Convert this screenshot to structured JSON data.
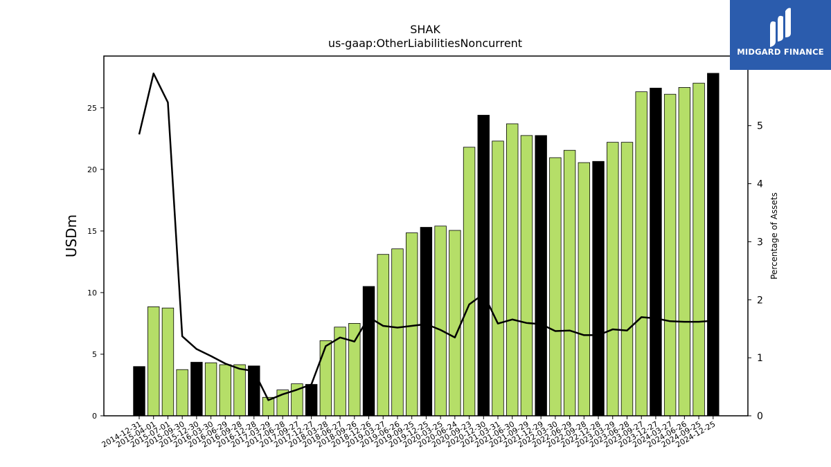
{
  "brand": {
    "name": "MIDGARD FINANCE",
    "background": "#2b5cad"
  },
  "chart_data": {
    "type": "bar",
    "title": "SHAK",
    "subtitle": "us-gaap:OtherLiabilitiesNoncurrent",
    "ylabel": "USDm",
    "y2label": "Percentage of Assets",
    "ylim": [
      0,
      29.2
    ],
    "y2lim": [
      0,
      6.2
    ],
    "yticks": [
      0,
      5,
      10,
      15,
      20,
      25
    ],
    "y2ticks": [
      0,
      1,
      2,
      3,
      4,
      5
    ],
    "bar_color_default": "#b5de68",
    "bar_color_highlight": "#000000",
    "line_color": "#000000",
    "categories": [
      "2014-12-31",
      "2015-04-01",
      "2015-07-01",
      "2015-09-30",
      "2015-12-30",
      "2016-03-30",
      "2016-06-29",
      "2016-09-28",
      "2016-12-28",
      "2017-03-29",
      "2017-06-28",
      "2017-09-27",
      "2017-12-27",
      "2018-03-28",
      "2018-06-27",
      "2018-09-26",
      "2018-12-26",
      "2019-03-27",
      "2019-06-26",
      "2019-09-25",
      "2019-12-25",
      "2020-03-25",
      "2020-06-24",
      "2020-09-23",
      "2020-12-30",
      "2021-03-31",
      "2021-06-30",
      "2021-09-29",
      "2021-12-29",
      "2022-03-30",
      "2022-06-29",
      "2022-09-28",
      "2022-12-28",
      "2023-03-29",
      "2023-06-28",
      "2023-09-27",
      "2023-12-27",
      "2024-03-27",
      "2024-06-26",
      "2024-09-25",
      "2024-12-25"
    ],
    "series": [
      {
        "kind": "bar",
        "axis": "left",
        "values": [
          4.0,
          8.85,
          8.75,
          3.75,
          4.35,
          4.3,
          4.15,
          4.15,
          4.05,
          1.5,
          2.1,
          2.6,
          2.55,
          6.1,
          7.2,
          7.5,
          10.5,
          13.1,
          13.55,
          14.85,
          15.3,
          15.4,
          15.05,
          21.8,
          24.4,
          22.3,
          23.7,
          22.75,
          22.75,
          20.95,
          21.55,
          20.55,
          20.65,
          22.2,
          22.2,
          26.3,
          26.6,
          26.1,
          26.65,
          27.0,
          27.8
        ],
        "highlight": [
          true,
          false,
          false,
          false,
          true,
          false,
          false,
          false,
          true,
          false,
          false,
          false,
          true,
          false,
          false,
          false,
          true,
          false,
          false,
          false,
          true,
          false,
          false,
          false,
          true,
          false,
          false,
          false,
          true,
          false,
          false,
          false,
          true,
          false,
          false,
          false,
          true,
          false,
          false,
          false,
          true
        ]
      },
      {
        "kind": "line",
        "axis": "right",
        "values": [
          4.85,
          5.9,
          5.4,
          1.37,
          1.15,
          1.03,
          0.9,
          0.81,
          0.77,
          0.27,
          0.37,
          0.45,
          0.54,
          1.2,
          1.35,
          1.28,
          1.7,
          1.55,
          1.52,
          1.55,
          1.58,
          1.48,
          1.35,
          1.92,
          2.1,
          1.59,
          1.66,
          1.6,
          1.58,
          1.46,
          1.47,
          1.39,
          1.39,
          1.49,
          1.47,
          1.7,
          1.68,
          1.63,
          1.62,
          1.62,
          1.64
        ]
      }
    ]
  }
}
